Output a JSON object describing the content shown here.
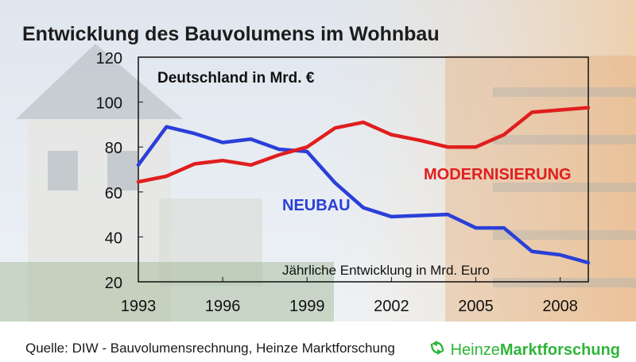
{
  "title": "Entwicklung des Bauvolumens im Wohnbau",
  "source": "Quelle: DIW - Bauvolumensrechnung,  Heinze Marktforschung",
  "brand": {
    "light": "Heinze",
    "bold": "Marktforschung",
    "icon": "heinze-logo-icon",
    "color": "#2fb53a"
  },
  "colors": {
    "neubau": "#2a3fd8",
    "modernisierung": "#e01e1e",
    "axis": "#111111"
  },
  "chart_data": {
    "type": "line",
    "title": "Entwicklung des Bauvolumens im Wohnbau",
    "subtitle": "Deutschland in Mrd. €",
    "annotation": "Jährliche Entwicklung in Mrd. Euro",
    "xlabel": "",
    "ylabel": "",
    "x": [
      1993,
      1994,
      1995,
      1996,
      1997,
      1998,
      1999,
      2000,
      2001,
      2002,
      2003,
      2004,
      2005,
      2006,
      2007,
      2008,
      2009
    ],
    "xticks": [
      1993,
      1996,
      1999,
      2002,
      2005,
      2008
    ],
    "xlim": [
      1993,
      2009
    ],
    "yticks": [
      20,
      40,
      60,
      80,
      100,
      120
    ],
    "ylim": [
      20,
      120
    ],
    "grid": false,
    "series": [
      {
        "name": "NEUBAU",
        "color": "#2a3fd8",
        "values": [
          72,
          89,
          86,
          82,
          83.5,
          79,
          78,
          64,
          53,
          49,
          49.5,
          50,
          44,
          44,
          33.5,
          32,
          28.5
        ]
      },
      {
        "name": "MODERNISIERUNG",
        "color": "#e01e1e",
        "values": [
          64.5,
          67,
          72.5,
          74,
          72,
          76.5,
          80,
          88.5,
          91,
          85.5,
          83,
          80,
          80,
          85.5,
          95.5,
          96.5,
          97.5
        ]
      }
    ]
  }
}
